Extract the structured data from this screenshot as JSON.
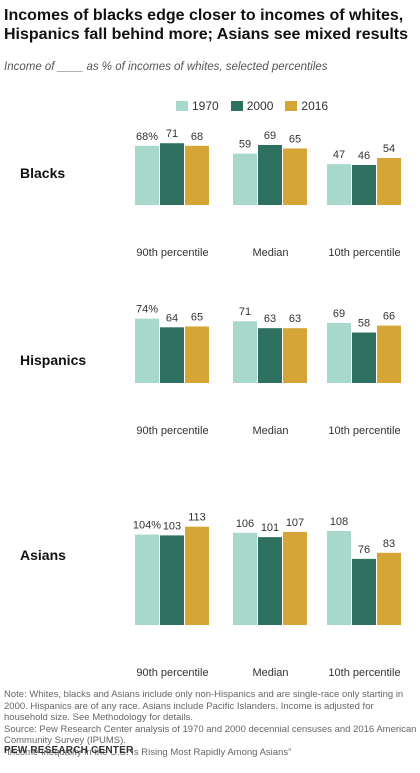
{
  "title": "Incomes of blacks edge closer to incomes of whites, Hispanics fall behind more; Asians see mixed results",
  "subtitle": "Income of ____ as % of incomes of whites, selected percentiles",
  "colors": {
    "1970": "#a8d8cb",
    "2000": "#2e7160",
    "2016": "#d6a537"
  },
  "chart_data": {
    "type": "bar",
    "series": [
      {
        "name": "1970"
      },
      {
        "name": "2000"
      },
      {
        "name": "2016"
      }
    ],
    "categories": [
      "90th percentile",
      "Median",
      "10th percentile"
    ],
    "panels": [
      {
        "group": "Blacks",
        "values": [
          [
            68,
            71,
            68
          ],
          [
            59,
            69,
            65
          ],
          [
            47,
            46,
            54
          ]
        ],
        "labels": [
          [
            "68%",
            "71",
            "68"
          ],
          [
            "59",
            "69",
            "65"
          ],
          [
            "47",
            "46",
            "54"
          ]
        ]
      },
      {
        "group": "Hispanics",
        "values": [
          [
            74,
            64,
            65
          ],
          [
            71,
            63,
            63
          ],
          [
            69,
            58,
            66
          ]
        ],
        "labels": [
          [
            "74%",
            "64",
            "65"
          ],
          [
            "71",
            "63",
            "63"
          ],
          [
            "69",
            "58",
            "66"
          ]
        ]
      },
      {
        "group": "Asians",
        "values": [
          [
            104,
            103,
            113
          ],
          [
            106,
            101,
            107
          ],
          [
            108,
            76,
            83
          ]
        ],
        "labels": [
          [
            "104%",
            "103",
            "113"
          ],
          [
            "106",
            "101",
            "107"
          ],
          [
            "108",
            "76",
            "83"
          ]
        ]
      }
    ]
  },
  "notes": [
    "Note: Whites, blacks and Asians include only non-Hispanics and are single-race only starting in 2000. Hispanics are of any race. Asians include Pacific Islanders. Income is adjusted for household size. See Methodology for details.",
    "Source: Pew Research Center analysis of 1970 and 2000 decennial censuses and 2016 American Community Survey (IPUMS).",
    "“Income Inequality in the U.S. Is Rising Most Rapidly Among Asians”"
  ],
  "brand": "PEW RESEARCH CENTER"
}
